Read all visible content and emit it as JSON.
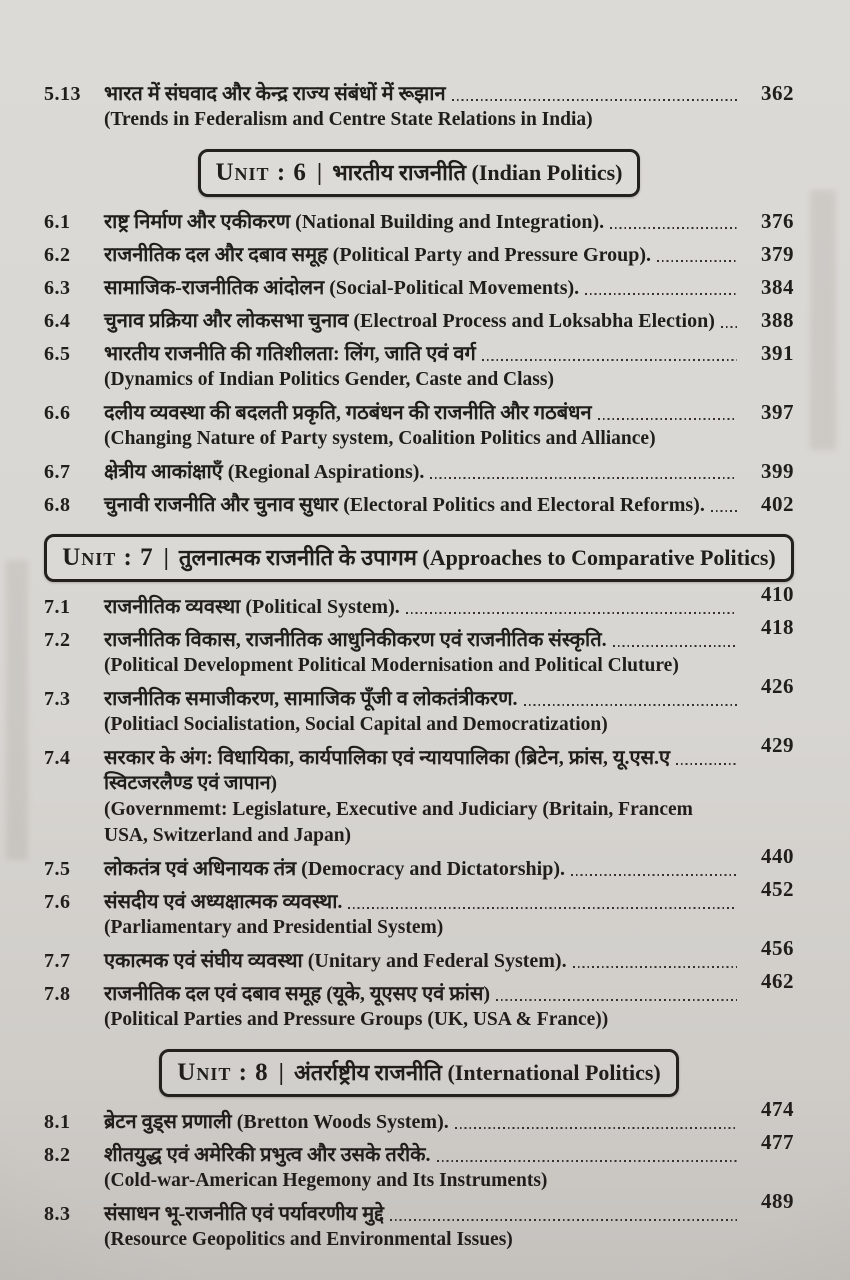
{
  "page": {
    "bg": "#d8d6d2",
    "text_color": "#201e1b"
  },
  "toc": {
    "blocks": [
      {
        "type": "entry",
        "num": "5.13",
        "title": "भारत में संघवाद और केन्द्र राज्य संबंधों में रूझान",
        "page": "362",
        "dots": true,
        "raise": false,
        "cont": [
          "(Trends in Federalism and Centre State Relations in India)"
        ]
      },
      {
        "type": "unit",
        "unit": "6",
        "label": "Unit : 6",
        "separator": "|",
        "title": "भारतीय राजनीति (Indian Politics)"
      },
      {
        "type": "entry",
        "num": "6.1",
        "title": "राष्ट्र निर्माण और एकीकरण (National Building and Integration).",
        "page": "376",
        "dots": true,
        "raise": false
      },
      {
        "type": "entry",
        "num": "6.2",
        "title": "राजनीतिक दल और दबाव समूह (Political Party and Pressure Group).",
        "page": "379",
        "dots": true,
        "raise": false
      },
      {
        "type": "entry",
        "num": "6.3",
        "title": "सामाजिक-राजनीतिक आंदोलन (Social-Political Movements).",
        "page": "384",
        "dots": true,
        "raise": false
      },
      {
        "type": "entry",
        "num": "6.4",
        "title": "चुनाव प्रक्रिया और लोकसभा चुनाव (Electroal Process and Loksabha Election)",
        "page": "388",
        "dots": true,
        "raise": false
      },
      {
        "type": "entry",
        "num": "6.5",
        "title": "भारतीय राजनीति की गतिशीलता: लिंग, जाति एवं वर्ग",
        "page": "391",
        "dots": true,
        "raise": false,
        "cont": [
          "(Dynamics of Indian Politics Gender, Caste and Class)"
        ]
      },
      {
        "type": "entry",
        "num": "6.6",
        "title": "दलीय व्यवस्था की बदलती प्रकृति, गठबंधन की राजनीति और गठबंधन",
        "page": "397",
        "dots": true,
        "raise": false,
        "cont": [
          "(Changing Nature of Party system, Coalition Politics and Alliance)"
        ]
      },
      {
        "type": "entry",
        "num": "6.7",
        "title": "क्षेत्रीय आकांक्षाएँ (Regional Aspirations).",
        "page": "399",
        "dots": true,
        "raise": false
      },
      {
        "type": "entry",
        "num": "6.8",
        "title": "चुनावी राजनीति और चुनाव सुधार (Electoral Politics and Electoral Reforms).",
        "page": "402",
        "dots": true,
        "raise": false
      },
      {
        "type": "unit",
        "unit": "7",
        "label": "Unit : 7",
        "separator": "|",
        "title": "तुलनात्मक राजनीति के उपागम (Approaches to Comparative Politics)"
      },
      {
        "type": "entry",
        "num": "7.1",
        "title": "राजनीतिक व्यवस्था (Political System).",
        "page": "410",
        "dots": true,
        "raise": true
      },
      {
        "type": "entry",
        "num": "7.2",
        "title": "राजनीतिक विकास, राजनीतिक आधुनिकीकरण एवं राजनीतिक संस्कृति.",
        "page": "418",
        "dots": true,
        "raise": true,
        "cont": [
          "(Political Development Political Modernisation and Political Cluture)"
        ]
      },
      {
        "type": "entry",
        "num": "7.3",
        "title": "राजनीतिक समाजीकरण, सामाजिक पूँजी व लोकतंत्रीकरण.",
        "page": "426",
        "dots": true,
        "raise": true,
        "cont": [
          "(Politiacl Socialistation, Social Capital and Democratization)"
        ]
      },
      {
        "type": "entry",
        "num": "7.4",
        "title": "सरकार के अंग: विधायिका, कार्यपालिका एवं न्यायपालिका (ब्रिटेन, फ्रांस, यू.एस.ए",
        "page": "429",
        "dots": true,
        "raise": true,
        "cont": [
          "स्विटजरलैण्ड एवं जापान)",
          "(Governmemt: Legislature, Executive and Judiciary (Britain, Francem",
          "USA, Switzerland and Japan)"
        ]
      },
      {
        "type": "entry",
        "num": "7.5",
        "title": "लोकतंत्र एवं अधिनायक तंत्र (Democracy and Dictatorship).",
        "page": "440",
        "dots": true,
        "raise": true
      },
      {
        "type": "entry",
        "num": "7.6",
        "title": "संसदीय एवं अध्यक्षात्मक व्यवस्था.",
        "page": "452",
        "dots": true,
        "raise": true,
        "cont": [
          "(Parliamentary and Presidential System)"
        ]
      },
      {
        "type": "entry",
        "num": "7.7",
        "title": "एकात्मक एवं संघीय व्यवस्था (Unitary and Federal System).",
        "page": "456",
        "dots": true,
        "raise": true
      },
      {
        "type": "entry",
        "num": "7.8",
        "title": "राजनीतिक दल एवं दबाव समूह (यूके, यूएसए एवं फ्रांस)",
        "page": "462",
        "dots": true,
        "raise": true,
        "cont": [
          "(Political Parties and Pressure Groups (UK, USA & France))"
        ]
      },
      {
        "type": "unit",
        "unit": "8",
        "label": "Unit : 8",
        "separator": "|",
        "title": "अंतर्राष्ट्रीय राजनीति (International Politics)"
      },
      {
        "type": "entry",
        "num": "8.1",
        "title": "ब्रेटन वुड्स प्रणाली (Bretton Woods System).",
        "page": "474",
        "dots": true,
        "raise": true
      },
      {
        "type": "entry",
        "num": "8.2",
        "title": "शीतयुद्ध एवं अमेरिकी प्रभुत्व और उसके तरीके.",
        "page": "477",
        "dots": true,
        "raise": true,
        "cont": [
          "(Cold-war-American Hegemony and Its Instruments)"
        ]
      },
      {
        "type": "entry",
        "num": "8.3",
        "title": "संसाधन भू-राजनीति एवं पर्यावरणीय मुद्दे",
        "page": "489",
        "dots": true,
        "raise": true,
        "cont": [
          "(Resource Geopolitics and Environmental Issues)"
        ]
      }
    ]
  }
}
